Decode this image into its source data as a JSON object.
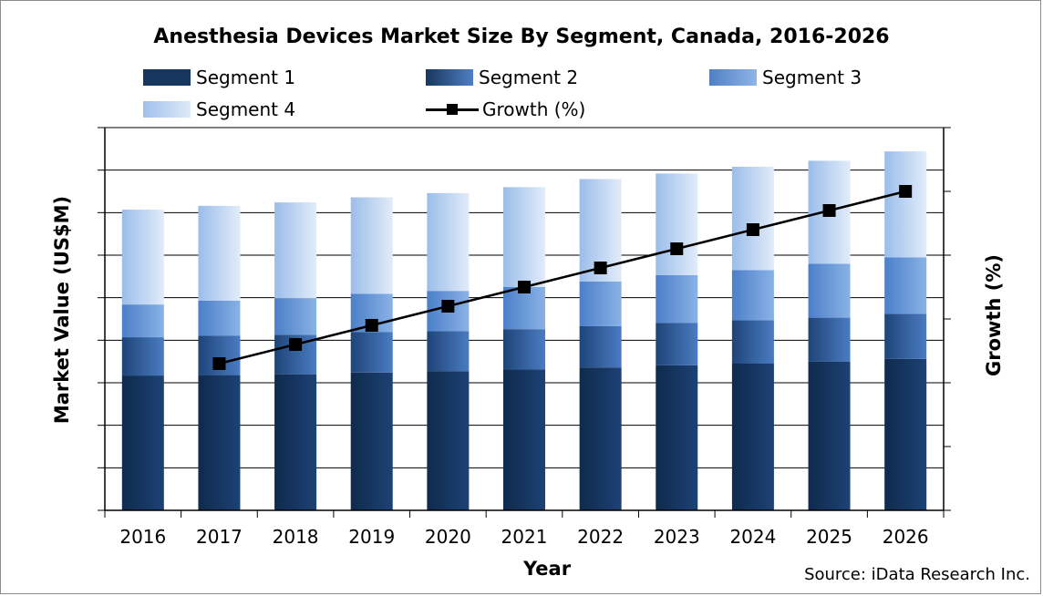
{
  "chart_data": {
    "type": "bar",
    "stacked": true,
    "title": "Anesthesia Devices Market Size By Segment, Canada, 2016-2026",
    "xlabel": "Year",
    "ylabel": "Market Value (US$M)",
    "y2label": "Growth (%)",
    "source": "Source: iData Research Inc.",
    "categories": [
      "2016",
      "2017",
      "2018",
      "2019",
      "2020",
      "2021",
      "2022",
      "2023",
      "2024",
      "2025",
      "2026"
    ],
    "ylim": [
      0,
      9
    ],
    "y2lim": [
      0,
      6
    ],
    "grid": true,
    "legend_position": "top",
    "series": [
      {
        "name": "Segment 1",
        "color": "#17375e",
        "values": [
          3.17,
          3.18,
          3.2,
          3.24,
          3.27,
          3.31,
          3.36,
          3.41,
          3.45,
          3.5,
          3.56
        ]
      },
      {
        "name": "Segment 2",
        "color": "#2e5f9e",
        "values": [
          0.9,
          0.93,
          0.93,
          0.95,
          0.94,
          0.95,
          0.97,
          1.0,
          1.02,
          1.03,
          1.06
        ]
      },
      {
        "name": "Segment 3",
        "color": "#5b8fd6",
        "values": [
          0.77,
          0.82,
          0.86,
          0.9,
          0.95,
          0.99,
          1.05,
          1.12,
          1.18,
          1.27,
          1.33
        ]
      },
      {
        "name": "Segment 4",
        "color": "#bcd2f0",
        "values": [
          2.23,
          2.23,
          2.25,
          2.27,
          2.3,
          2.35,
          2.41,
          2.39,
          2.43,
          2.42,
          2.49
        ]
      }
    ],
    "line_series": {
      "name": "Growth (%)",
      "color": "#000000",
      "axis": "secondary",
      "values": [
        null,
        2.3,
        2.6,
        2.9,
        3.2,
        3.5,
        3.8,
        4.1,
        4.4,
        4.7,
        5.0
      ]
    }
  }
}
